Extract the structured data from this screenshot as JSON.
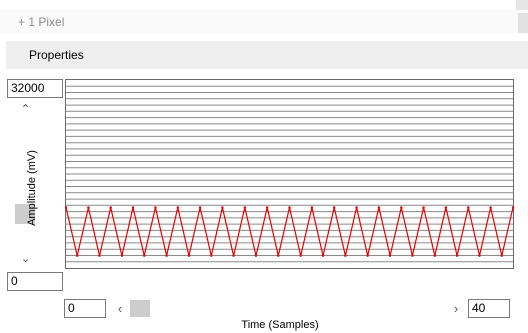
{
  "toolbar": {
    "pixel_label": "+ 1 Pixel"
  },
  "panel": {
    "title": "Properties"
  },
  "axes": {
    "y_max": "32000",
    "y_min": "0",
    "x_min": "0",
    "x_max": "40",
    "y_label": "Amplitude (mV)",
    "x_label": "Time (Samples)"
  },
  "icons": {
    "scroll_up": "chevron-up-icon",
    "scroll_down": "chevron-down-icon",
    "scroll_left": "chevron-left-icon",
    "scroll_right": "chevron-right-icon"
  },
  "colors": {
    "signal": "#e60000",
    "grid": "#8a8a8a",
    "frame": "#6a6a6a"
  },
  "chart_data": {
    "type": "line",
    "title": "",
    "xlabel": "Time (Samples)",
    "ylabel": "Amplitude (mV)",
    "xlim": [
      0,
      40
    ],
    "ylim": [
      0,
      32000
    ],
    "grid": true,
    "series": [
      {
        "x": [
          0,
          1,
          2,
          3,
          4,
          5,
          6,
          7,
          8,
          9,
          10,
          11,
          12,
          13,
          14,
          15,
          16,
          17,
          18,
          19,
          20,
          21,
          22,
          23,
          24,
          25,
          26,
          27,
          28,
          29,
          30,
          31,
          32,
          33,
          34,
          35,
          36,
          37,
          38,
          39,
          40
        ],
        "y": [
          10300,
          2100,
          10300,
          2100,
          10300,
          2100,
          10300,
          2100,
          10300,
          2100,
          10300,
          2100,
          10300,
          2100,
          10300,
          2100,
          10300,
          2100,
          10300,
          2100,
          10300,
          2100,
          10300,
          2100,
          10300,
          2100,
          10300,
          2100,
          10300,
          2100,
          10300,
          2100,
          10300,
          2100,
          10300,
          2100,
          10300,
          2100,
          10300,
          2100,
          10300
        ]
      }
    ]
  }
}
